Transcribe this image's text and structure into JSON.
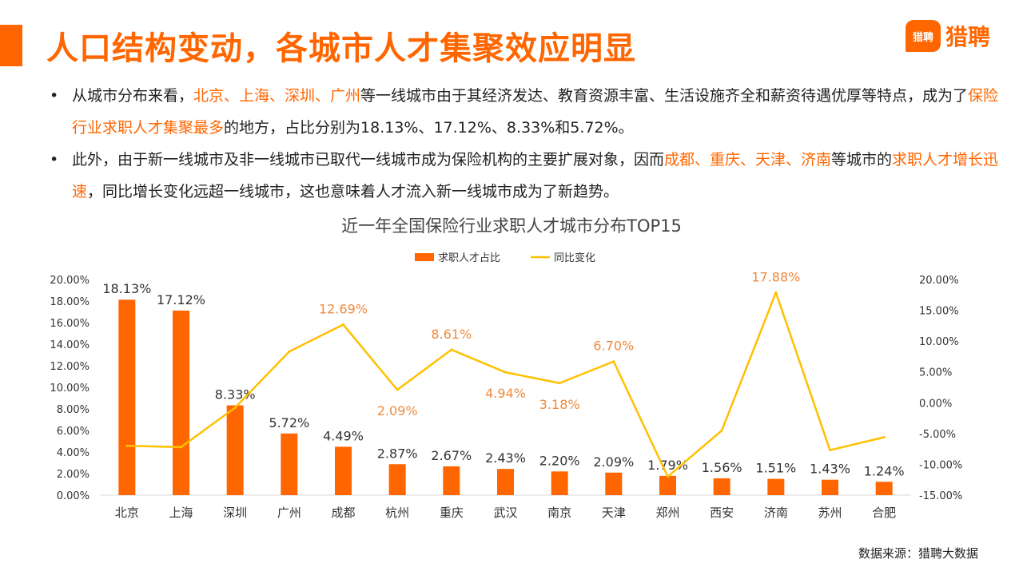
{
  "header": {
    "title": "人口结构变动，各城市人才集聚效应明显"
  },
  "logo": {
    "badge_text": "猎聘",
    "text": "猎聘"
  },
  "bullets": [
    {
      "segments": [
        {
          "text": "从城市分布来看，",
          "hl": false
        },
        {
          "text": "北京、上海、深圳、广州",
          "hl": true
        },
        {
          "text": "等一线城市由于其经济发达、教育资源丰富、生活设施齐全和薪资待遇优厚等特点，成为了",
          "hl": false
        },
        {
          "text": "保险行业求职人才集聚最多",
          "hl": true
        },
        {
          "text": "的地方，占比分别为18.13%、17.12%、8.33%和5.72%。",
          "hl": false
        }
      ]
    },
    {
      "segments": [
        {
          "text": "此外，由于新一线城市及非一线城市已取代一线城市成为保险机构的主要扩展对象，因而",
          "hl": false
        },
        {
          "text": "成都、重庆、天津、济南",
          "hl": true
        },
        {
          "text": "等城市的",
          "hl": false
        },
        {
          "text": "求职人才增长迅速",
          "hl": true
        },
        {
          "text": "，同比增长变化远超一线城市，这也意味着人才流入新一线城市成为了新趋势。",
          "hl": false
        }
      ]
    }
  ],
  "bullet_symbol": "•",
  "colors": {
    "accent": "#ff6600",
    "bar": "#ff6600",
    "line": "#ffc000",
    "line_label": "#f08a3c"
  },
  "chart_data": {
    "type": "bar",
    "title": "近一年全国保险行业求职人才城市分布TOP15",
    "categories": [
      "北京",
      "上海",
      "深圳",
      "广州",
      "成都",
      "杭州",
      "重庆",
      "武汉",
      "南京",
      "天津",
      "郑州",
      "西安",
      "济南",
      "苏州",
      "合肥"
    ],
    "series": [
      {
        "name": "求职人才占比",
        "type": "bar",
        "axis": "left",
        "values": [
          18.13,
          17.12,
          8.33,
          5.72,
          4.49,
          2.87,
          2.67,
          2.43,
          2.2,
          2.09,
          1.79,
          1.56,
          1.51,
          1.43,
          1.24
        ],
        "labels": [
          "18.13%",
          "17.12%",
          "8.33%",
          "5.72%",
          "4.49%",
          "2.87%",
          "2.67%",
          "2.43%",
          "2.20%",
          "2.09%",
          "1.79%",
          "1.56%",
          "1.51%",
          "1.43%",
          "1.24%"
        ]
      },
      {
        "name": "同比变化",
        "type": "line",
        "axis": "right",
        "values": [
          -7.0,
          -7.2,
          -0.8,
          8.3,
          12.69,
          2.09,
          8.61,
          4.94,
          3.18,
          6.7,
          -12.0,
          -4.5,
          17.88,
          -7.7,
          -5.6
        ],
        "labels": [
          "",
          "",
          "",
          "",
          "12.69%",
          "2.09%",
          "8.61%",
          "4.94%",
          "3.18%",
          "6.70%",
          "",
          "",
          "17.88%",
          "",
          ""
        ]
      }
    ],
    "y_left": {
      "min": 0,
      "max": 20,
      "step": 2,
      "tick_labels": [
        "0.00%",
        "2.00%",
        "4.00%",
        "6.00%",
        "8.00%",
        "10.00%",
        "12.00%",
        "14.00%",
        "16.00%",
        "18.00%",
        "20.00%"
      ]
    },
    "y_right": {
      "min": -15,
      "max": 20,
      "step": 5,
      "tick_labels": [
        "-15.00%",
        "-10.00%",
        "-5.00%",
        "0.00%",
        "5.00%",
        "10.00%",
        "15.00%",
        "20.00%"
      ]
    },
    "legend_position": "top-center",
    "grid": false
  },
  "source": "数据来源：猎聘大数据"
}
